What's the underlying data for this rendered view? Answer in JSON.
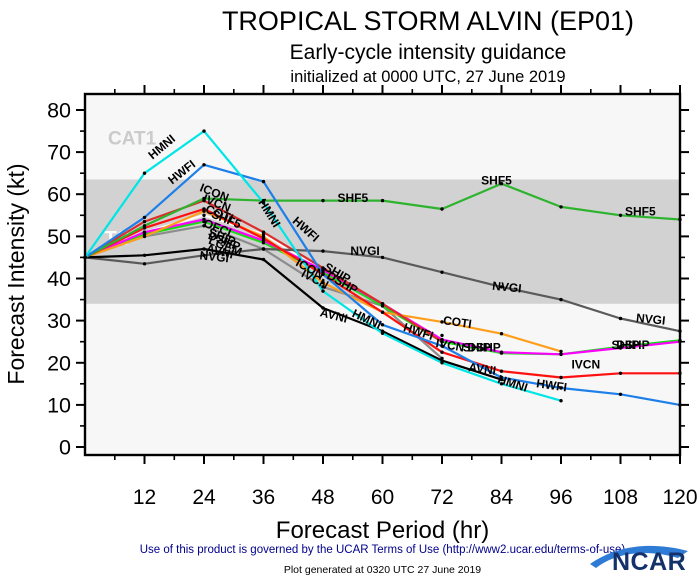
{
  "header": {
    "title": "TROPICAL STORM ALVIN (EP01)",
    "subtitle": "Early-cycle intensity guidance",
    "initialized": "initialized at 0000 UTC, 27 June 2019"
  },
  "footer": {
    "terms": "Use of this product is governed by the UCAR Terms of Use (http://www2.ucar.edu/terms-of-use)",
    "generated": "Plot generated at 0320 UTC  27 June 2019",
    "logo_text": "NCAR"
  },
  "colors": {
    "frame": "#000000",
    "plot_bg": "#F7F7F7",
    "band": "#D2D2D2",
    "cat1_text": "#CBCBCB",
    "ts_text": "#FFFFFF",
    "terms": "#00008B",
    "logo_navy": "#14316A",
    "logo_blue": "#2E7BD6"
  },
  "chart_data": {
    "type": "line",
    "title": "TROPICAL STORM ALVIN (EP01)",
    "subtitle": "Early-cycle intensity guidance",
    "xlabel": "Forecast Period (hr)",
    "ylabel": "Forecast Intensity (kt)",
    "xlim": [
      0,
      120
    ],
    "ylim": [
      -2,
      84
    ],
    "x_ticks_major": [
      12,
      24,
      36,
      48,
      60,
      72,
      84,
      96,
      108,
      120
    ],
    "x_minor_step": 6,
    "y_ticks_major": [
      0,
      10,
      20,
      30,
      40,
      50,
      60,
      70,
      80
    ],
    "y_minor_step": 5,
    "grid": false,
    "band": {
      "from": 34,
      "to": 63.5,
      "cat1_label": {
        "text": "CAT1",
        "t": 9.5,
        "v": 71.8
      },
      "ts_label": {
        "text": "TS",
        "t": 6.5,
        "v": 48
      }
    },
    "series": [
      {
        "name": "OFCL",
        "color": "#FFFFFF",
        "x": [
          0,
          12,
          24,
          36,
          48,
          60,
          72
        ],
        "values": [
          45,
          51,
          55,
          50.5,
          42,
          34,
          26.5
        ]
      },
      {
        "name": "LGEM",
        "color": "#8C8C8C",
        "x": [
          0,
          12,
          24,
          36,
          48,
          60,
          72
        ],
        "values": [
          45,
          50,
          52.5,
          47,
          38,
          33.5,
          21
        ]
      },
      {
        "name": "SHIP",
        "color": "#17DD17",
        "x": [
          0,
          12,
          24,
          36,
          48,
          60,
          72,
          84,
          96,
          108,
          120
        ],
        "values": [
          45,
          50.5,
          53.5,
          48.5,
          41.5,
          33.5,
          25,
          22.3,
          22,
          23.8,
          25.3
        ]
      },
      {
        "name": "DSHP",
        "color": "#FF00FF",
        "x": [
          0,
          12,
          24,
          36,
          48,
          60,
          72,
          84,
          96,
          108,
          120
        ],
        "values": [
          45,
          51,
          54,
          49,
          42,
          34,
          25.5,
          22.5,
          22,
          23.5,
          25
        ]
      },
      {
        "name": "COTI",
        "color": "#FF9E1B",
        "x": [
          0,
          12,
          24,
          36,
          48,
          60,
          72,
          84,
          96
        ],
        "values": [
          45,
          50,
          56,
          50,
          39,
          32,
          29.7,
          26.9,
          22.7
        ]
      },
      {
        "name": "ICON",
        "color": "#DD2C2C",
        "x": [
          0,
          12,
          24,
          36,
          48,
          60,
          72
        ],
        "values": [
          45,
          53.5,
          58.5,
          51,
          42.5,
          34,
          25
        ]
      },
      {
        "name": "NVGI",
        "color": "#5A5A5A",
        "x": [
          0,
          12,
          24,
          36,
          48,
          60,
          72,
          84,
          96,
          108,
          120
        ],
        "values": [
          45,
          43.5,
          45.5,
          47,
          46.5,
          45,
          41.5,
          38,
          35,
          30.5,
          27.5
        ]
      },
      {
        "name": "IVCN",
        "color": "#FF1010",
        "x": [
          0,
          12,
          24,
          36,
          48,
          60,
          72,
          84,
          96,
          108,
          120
        ],
        "values": [
          45,
          52,
          56.5,
          49.5,
          41,
          32,
          22.5,
          18,
          16.5,
          17.5,
          17.5
        ]
      },
      {
        "name": "AVNI",
        "color": "#000000",
        "x": [
          0,
          12,
          24,
          36,
          48,
          60,
          72,
          84
        ],
        "values": [
          45,
          45.5,
          47,
          44.5,
          33,
          27.5,
          20.5,
          16
        ]
      },
      {
        "name": "SHF5",
        "color": "#2DB32D",
        "x": [
          0,
          12,
          24,
          36,
          48,
          60,
          72,
          84,
          96,
          108,
          120
        ],
        "values": [
          45,
          52.5,
          59,
          58.5,
          58.5,
          58.5,
          56.5,
          62.5,
          57,
          55,
          54
        ]
      },
      {
        "name": "HWFI",
        "color": "#1E7FE8",
        "x": [
          0,
          12,
          24,
          36,
          48,
          60,
          72,
          84,
          96,
          108,
          120
        ],
        "values": [
          45,
          54.5,
          67,
          63,
          41,
          29,
          24,
          16.5,
          14,
          12.5,
          10
        ]
      },
      {
        "name": "HMNI",
        "color": "#00E5E5",
        "x": [
          0,
          12,
          24,
          36,
          48,
          60,
          72,
          84,
          96
        ],
        "values": [
          45,
          65,
          75,
          58,
          37,
          27,
          20,
          15,
          11
        ]
      }
    ],
    "line_labels": [
      {
        "text": "HMNI",
        "t": 16,
        "v": 70.5,
        "rot": -40
      },
      {
        "text": "HMNI",
        "t": 36.5,
        "v": 55,
        "rot": 58
      },
      {
        "text": "HMNI",
        "t": 56.5,
        "v": 29.5,
        "rot": 25
      },
      {
        "text": "HMNI",
        "t": 86,
        "v": 14.2,
        "rot": 18
      },
      {
        "text": "HWFI",
        "t": 20,
        "v": 64.5,
        "rot": -38
      },
      {
        "text": "HWFI",
        "t": 44,
        "v": 51,
        "rot": 42
      },
      {
        "text": "HWFI",
        "t": 67,
        "v": 26.5,
        "rot": 18
      },
      {
        "text": "HWFI",
        "t": 94,
        "v": 13.7,
        "rot": 8
      },
      {
        "text": "ICON",
        "t": 25.8,
        "v": 59.5,
        "rot": 22
      },
      {
        "text": "ICON",
        "t": 45,
        "v": 41.5,
        "rot": 28
      },
      {
        "text": "IVCN",
        "t": 26.3,
        "v": 57,
        "rot": 22
      },
      {
        "text": "IVCN",
        "t": 46,
        "v": 39,
        "rot": 28
      },
      {
        "text": "IVCN",
        "t": 73.5,
        "v": 23.2,
        "rot": 10
      },
      {
        "text": "IVCN",
        "t": 101,
        "v": 18.6,
        "rot": 0
      },
      {
        "text": "COTI",
        "t": 26.8,
        "v": 54.5,
        "rot": 22
      },
      {
        "text": "COTI",
        "t": 75,
        "v": 28.7,
        "rot": 8
      },
      {
        "text": "SHF5",
        "t": 28.2,
        "v": 53.2,
        "rot": 22
      },
      {
        "text": "SHF5",
        "t": 54,
        "v": 58.2,
        "rot": 0
      },
      {
        "text": "SHF5",
        "t": 83,
        "v": 62.3,
        "rot": 0
      },
      {
        "text": "SHF5",
        "t": 112,
        "v": 55,
        "rot": 0
      },
      {
        "text": "OFCL",
        "t": 26.8,
        "v": 51,
        "rot": 22
      },
      {
        "text": "SHIP",
        "t": 27.3,
        "v": 49,
        "rot": 22
      },
      {
        "text": "SHIP",
        "t": 50.5,
        "v": 40.5,
        "rot": 30
      },
      {
        "text": "SHIP",
        "t": 79,
        "v": 22.7,
        "rot": 0
      },
      {
        "text": "SHIP",
        "t": 109,
        "v": 23.3,
        "rot": 0
      },
      {
        "text": "DSHP",
        "t": 27.8,
        "v": 48,
        "rot": 22
      },
      {
        "text": "DSHP",
        "t": 51.5,
        "v": 38.2,
        "rot": 30
      },
      {
        "text": "DSHP",
        "t": 80.5,
        "v": 22.7,
        "rot": 0
      },
      {
        "text": "DSHP",
        "t": 110.5,
        "v": 23.3,
        "rot": 0
      },
      {
        "text": "LGEM",
        "t": 28,
        "v": 46.8,
        "rot": 22
      },
      {
        "text": "AVNI",
        "t": 27,
        "v": 45.5,
        "rot": 14
      },
      {
        "text": "AVNI",
        "t": 50,
        "v": 30.3,
        "rot": 14
      },
      {
        "text": "AVNI",
        "t": 80,
        "v": 17.6,
        "rot": 8
      },
      {
        "text": "NVGI",
        "t": 26,
        "v": 44.2,
        "rot": 6
      },
      {
        "text": "NVGI",
        "t": 56.5,
        "v": 45.6,
        "rot": 0
      },
      {
        "text": "NVGI",
        "t": 85,
        "v": 37,
        "rot": 6
      },
      {
        "text": "NVGI",
        "t": 114,
        "v": 29.4,
        "rot": 6
      }
    ]
  }
}
